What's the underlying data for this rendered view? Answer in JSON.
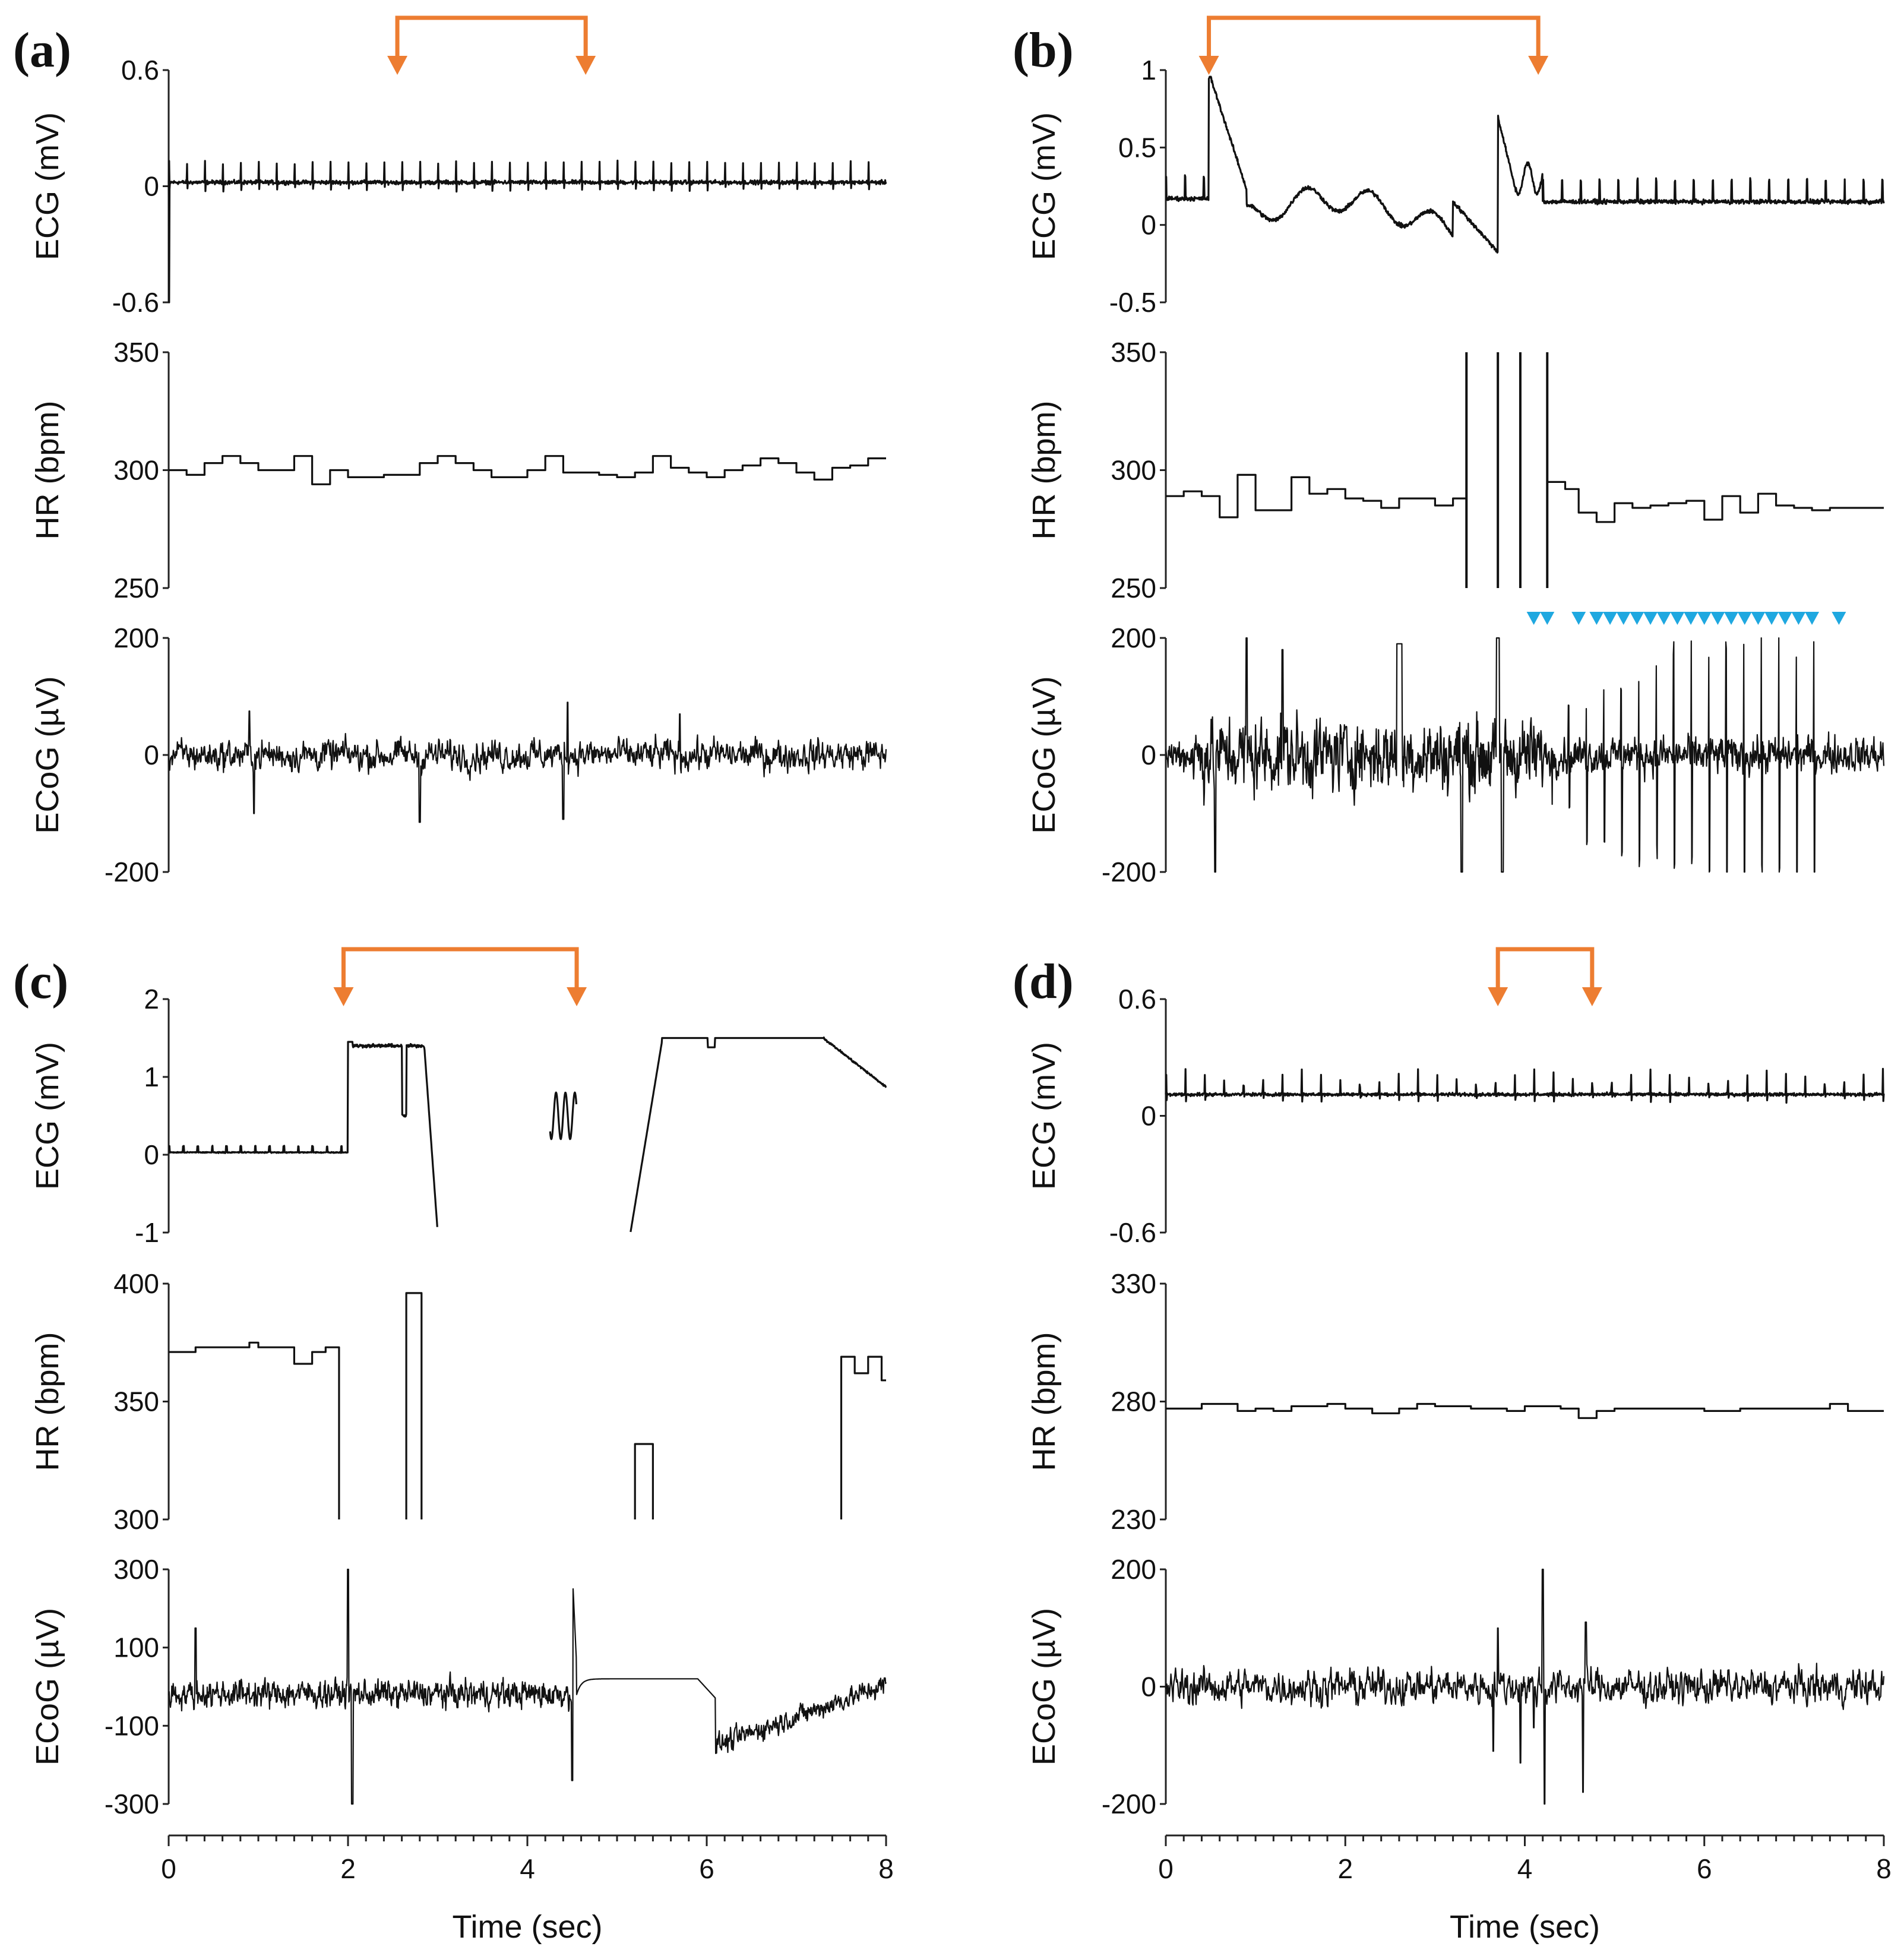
{
  "figure": {
    "colors": {
      "trace": "#111111",
      "marker_orange": "#ED7D31",
      "marker_blue": "#1FA8E0"
    },
    "xlabel": "Time (sec)",
    "x_ticks": [
      "0",
      "2",
      "4",
      "6",
      "8"
    ]
  },
  "chart_data": [
    {
      "panel": "(a)",
      "type": "line",
      "x_range": [
        0,
        8
      ],
      "stimulus_bracket": [
        2.55,
        4.65
      ],
      "arrhythmia_markers": [],
      "subplots": [
        {
          "name": "ECG",
          "ylabel": "ECG (mV)",
          "ylim": [
            -0.6,
            0.6
          ],
          "yticks": [
            "0.6",
            "0",
            "-0.6"
          ],
          "pattern": "spikes",
          "params": {
            "base": 0.02,
            "rate_bpm": 300,
            "amp": 0.16,
            "down": -0.1,
            "noise": 0.015,
            "start_spike": -0.75
          }
        },
        {
          "name": "HR",
          "ylabel": "HR (bpm)",
          "ylim": [
            250,
            350
          ],
          "yticks": [
            "350",
            "300",
            "250"
          ],
          "pattern": "steps",
          "steps": [
            [
              0,
              300
            ],
            [
              0.2,
              298
            ],
            [
              0.4,
              303
            ],
            [
              0.6,
              306
            ],
            [
              0.8,
              303
            ],
            [
              1.0,
              300
            ],
            [
              1.4,
              306
            ],
            [
              1.6,
              294
            ],
            [
              1.8,
              300
            ],
            [
              2.0,
              297
            ],
            [
              2.4,
              298
            ],
            [
              2.8,
              303
            ],
            [
              3.0,
              306
            ],
            [
              3.2,
              303
            ],
            [
              3.4,
              300
            ],
            [
              3.6,
              297
            ],
            [
              4.0,
              300
            ],
            [
              4.2,
              306
            ],
            [
              4.4,
              299
            ],
            [
              4.8,
              298
            ],
            [
              5.0,
              297
            ],
            [
              5.2,
              299
            ],
            [
              5.4,
              306
            ],
            [
              5.6,
              301
            ],
            [
              5.8,
              299
            ],
            [
              6.0,
              297
            ],
            [
              6.2,
              300
            ],
            [
              6.4,
              302
            ],
            [
              6.6,
              305
            ],
            [
              6.8,
              303
            ],
            [
              7.0,
              299
            ],
            [
              7.2,
              296
            ],
            [
              7.4,
              301
            ],
            [
              7.6,
              302
            ],
            [
              7.8,
              305
            ],
            [
              8.0,
              305
            ]
          ]
        },
        {
          "name": "ECoG",
          "ylabel": "ECoG (µV)",
          "ylim": [
            -200,
            200
          ],
          "yticks": [
            "200",
            "0",
            "-200"
          ],
          "pattern": "noise",
          "params": {
            "amp": 25,
            "events": [
              [
                0.9,
                75
              ],
              [
                0.95,
                -100
              ],
              [
                2.8,
                -115
              ],
              [
                4.45,
                90
              ],
              [
                4.4,
                -110
              ],
              [
                5.7,
                70
              ]
            ]
          }
        }
      ]
    },
    {
      "panel": "(b)",
      "type": "line",
      "x_range": [
        0,
        8
      ],
      "stimulus_bracket": [
        0.48,
        4.15
      ],
      "arrhythmia_markers": [
        4.1,
        4.25,
        4.6,
        4.8,
        4.95,
        5.1,
        5.25,
        5.4,
        5.55,
        5.7,
        5.85,
        6.0,
        6.15,
        6.3,
        6.45,
        6.6,
        6.75,
        6.9,
        7.05,
        7.2,
        7.5
      ],
      "subplots": [
        {
          "name": "ECG",
          "ylabel": "ECG (mV)",
          "ylim": [
            -0.5,
            1
          ],
          "yticks": [
            "1",
            "0.5",
            "0",
            "-0.5"
          ],
          "pattern": "custom_b_ecg"
        },
        {
          "name": "HR",
          "ylabel": "HR (bpm)",
          "ylim": [
            250,
            350
          ],
          "yticks": [
            "350",
            "300",
            "250"
          ],
          "pattern": "steps",
          "steps": [
            [
              0,
              289
            ],
            [
              0.2,
              291
            ],
            [
              0.4,
              289
            ],
            [
              0.6,
              280
            ],
            [
              0.8,
              298
            ],
            [
              1.0,
              283
            ],
            [
              1.2,
              283
            ],
            [
              1.4,
              297
            ],
            [
              1.6,
              290
            ],
            [
              1.8,
              292
            ],
            [
              2.0,
              288
            ],
            [
              2.2,
              287
            ],
            [
              2.4,
              284
            ],
            [
              2.6,
              288
            ],
            [
              2.8,
              288
            ],
            [
              3.0,
              285
            ],
            [
              3.2,
              288
            ],
            [
              3.35,
              null
            ],
            [
              3.7,
              null
            ],
            [
              3.95,
              null
            ],
            [
              4.25,
              295
            ],
            [
              4.45,
              292
            ],
            [
              4.6,
              282
            ],
            [
              4.8,
              278
            ],
            [
              5.0,
              286
            ],
            [
              5.2,
              284
            ],
            [
              5.4,
              285
            ],
            [
              5.6,
              286
            ],
            [
              5.8,
              287
            ],
            [
              6.0,
              279
            ],
            [
              6.2,
              289
            ],
            [
              6.4,
              282
            ],
            [
              6.6,
              290
            ],
            [
              6.8,
              285
            ],
            [
              7.0,
              284
            ],
            [
              7.2,
              283
            ],
            [
              7.4,
              284
            ],
            [
              8.0,
              284
            ]
          ],
          "spikes": [
            3.35,
            3.7,
            3.95,
            4.25
          ]
        },
        {
          "name": "ECoG",
          "ylabel": "ECoG (µV)",
          "ylim": [
            -200,
            200
          ],
          "yticks": [
            "200",
            "0",
            "-200"
          ],
          "pattern": "custom_b_ecog"
        }
      ]
    },
    {
      "panel": "(c)",
      "type": "line",
      "x_range": [
        0,
        8
      ],
      "stimulus_bracket": [
        1.95,
        4.55
      ],
      "arrhythmia_markers": [],
      "subplots": [
        {
          "name": "ECG",
          "ylabel": "ECG (mV)",
          "ylim": [
            -1,
            2
          ],
          "yticks": [
            "2",
            "1",
            "0",
            "-1"
          ],
          "pattern": "custom_c_ecg"
        },
        {
          "name": "HR",
          "ylabel": "HR (bpm)",
          "ylim": [
            300,
            400
          ],
          "yticks": [
            "400",
            "350",
            "300"
          ],
          "pattern": "custom_c_hr"
        },
        {
          "name": "ECoG",
          "ylabel": "ECoG (µV)",
          "ylim": [
            -300,
            300
          ],
          "yticks": [
            "300",
            "100",
            "-100",
            "-300"
          ],
          "pattern": "custom_c_ecog"
        }
      ]
    },
    {
      "panel": "(d)",
      "type": "line",
      "x_range": [
        0,
        8
      ],
      "stimulus_bracket": [
        3.7,
        4.75
      ],
      "arrhythmia_markers": [],
      "subplots": [
        {
          "name": "ECG",
          "ylabel": "ECG (mV)",
          "ylim": [
            -0.6,
            0.6
          ],
          "yticks": [
            "0.6",
            "0",
            "-0.6"
          ],
          "pattern": "spikes",
          "params": {
            "base": 0.11,
            "rate_bpm": 278,
            "amp": 0.13,
            "down": 0.04,
            "noise": 0.012,
            "start_spike": null
          }
        },
        {
          "name": "HR",
          "ylabel": "HR (bpm)",
          "ylim": [
            230,
            330
          ],
          "yticks": [
            "330",
            "280",
            "230"
          ],
          "pattern": "steps",
          "steps": [
            [
              0,
              277
            ],
            [
              0.4,
              279
            ],
            [
              0.8,
              276
            ],
            [
              1.0,
              277
            ],
            [
              1.2,
              276
            ],
            [
              1.4,
              278
            ],
            [
              1.8,
              279
            ],
            [
              2.0,
              277
            ],
            [
              2.3,
              275
            ],
            [
              2.6,
              277
            ],
            [
              2.8,
              279
            ],
            [
              3.0,
              278
            ],
            [
              3.4,
              277
            ],
            [
              3.8,
              276
            ],
            [
              4.0,
              278
            ],
            [
              4.4,
              277
            ],
            [
              4.6,
              273
            ],
            [
              4.8,
              276
            ],
            [
              5.0,
              277
            ],
            [
              5.8,
              277
            ],
            [
              6.0,
              276
            ],
            [
              6.4,
              277
            ],
            [
              7.0,
              277
            ],
            [
              7.4,
              279
            ],
            [
              7.6,
              276
            ],
            [
              8.0,
              276
            ]
          ]
        },
        {
          "name": "ECoG",
          "ylabel": "ECoG (µV)",
          "ylim": [
            -200,
            200
          ],
          "yticks": [
            "200",
            "0",
            "-200"
          ],
          "pattern": "noise",
          "params": {
            "amp": 28,
            "events": [
              [
                3.65,
                -110
              ],
              [
                3.7,
                100
              ],
              [
                4.2,
                200
              ],
              [
                4.22,
                -200
              ],
              [
                4.1,
                -70
              ],
              [
                4.65,
                -180
              ],
              [
                4.68,
                110
              ],
              [
                3.95,
                -130
              ]
            ]
          }
        }
      ]
    }
  ]
}
